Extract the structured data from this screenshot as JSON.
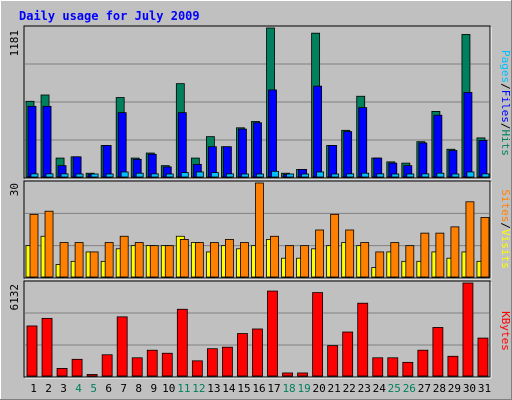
{
  "title": "Daily usage for July 2009",
  "colors": {
    "frame": "#c0c0c0",
    "title": "#0000ff",
    "hits": "#00805c",
    "files": "#0000ff",
    "pages": "#00c0ff",
    "visits": "#ffff00",
    "sites": "#ff8000",
    "kbytes": "#ff0000",
    "weekend_label": "#00805c",
    "weekday_label": "#000000"
  },
  "chart_data": [
    {
      "type": "bar",
      "panel": "requests",
      "ylabel_parts": [
        "Pages",
        "/",
        "Files",
        "/",
        "Hits"
      ],
      "ymax_label": "1181",
      "ylim": [
        0,
        1181
      ],
      "categories": [
        "1",
        "2",
        "3",
        "4",
        "5",
        "6",
        "7",
        "8",
        "9",
        "10",
        "11",
        "12",
        "13",
        "14",
        "15",
        "16",
        "17",
        "18",
        "19",
        "20",
        "21",
        "22",
        "23",
        "24",
        "25",
        "26",
        "27",
        "28",
        "29",
        "30",
        "31"
      ],
      "series": [
        {
          "name": "Hits",
          "values": [
            600,
            650,
            150,
            160,
            30,
            250,
            630,
            150,
            190,
            90,
            740,
            150,
            320,
            240,
            390,
            440,
            1181,
            30,
            60,
            1140,
            250,
            370,
            640,
            150,
            120,
            110,
            280,
            520,
            220,
            1130,
            310
          ]
        },
        {
          "name": "Files",
          "values": [
            560,
            560,
            90,
            160,
            20,
            250,
            510,
            140,
            180,
            80,
            510,
            100,
            240,
            240,
            380,
            430,
            690,
            20,
            60,
            720,
            250,
            360,
            550,
            150,
            110,
            90,
            270,
            490,
            210,
            670,
            290
          ]
        },
        {
          "name": "Pages",
          "values": [
            25,
            25,
            25,
            15,
            10,
            20,
            40,
            30,
            25,
            20,
            35,
            40,
            35,
            25,
            20,
            20,
            45,
            10,
            15,
            40,
            20,
            25,
            30,
            25,
            20,
            20,
            25,
            30,
            20,
            40,
            25
          ]
        }
      ]
    },
    {
      "type": "bar",
      "panel": "visitors",
      "ylabel_parts": [
        "Sites",
        "/",
        "Visits"
      ],
      "ymax_label": "30",
      "ylim": [
        0,
        30
      ],
      "categories": [
        "1",
        "2",
        "3",
        "4",
        "5",
        "6",
        "7",
        "8",
        "9",
        "10",
        "11",
        "12",
        "13",
        "14",
        "15",
        "16",
        "17",
        "18",
        "19",
        "20",
        "21",
        "22",
        "23",
        "24",
        "25",
        "26",
        "27",
        "28",
        "29",
        "30",
        "31"
      ],
      "series": [
        {
          "name": "Visits",
          "values": [
            10,
            13,
            4,
            5,
            8,
            5,
            9,
            10,
            10,
            10,
            13,
            11,
            8,
            10,
            9,
            10,
            12,
            6,
            6,
            9,
            10,
            11,
            10,
            3,
            8,
            5,
            5,
            8,
            6,
            8,
            5
          ]
        },
        {
          "name": "Sites",
          "values": [
            20,
            21,
            11,
            11,
            8,
            11,
            13,
            11,
            10,
            10,
            12,
            11,
            11,
            12,
            11,
            30,
            13,
            10,
            10,
            15,
            20,
            15,
            11,
            8,
            11,
            10,
            14,
            14,
            16,
            24,
            19
          ]
        }
      ]
    },
    {
      "type": "bar",
      "panel": "kbytes",
      "ylabel_parts": [
        "KBytes"
      ],
      "ymax_label": "6132",
      "ylim": [
        0,
        6132
      ],
      "categories": [
        "1",
        "2",
        "3",
        "4",
        "5",
        "6",
        "7",
        "8",
        "9",
        "10",
        "11",
        "12",
        "13",
        "14",
        "15",
        "16",
        "17",
        "18",
        "19",
        "20",
        "21",
        "22",
        "23",
        "24",
        "25",
        "26",
        "27",
        "28",
        "29",
        "30",
        "31"
      ],
      "series": [
        {
          "name": "KBytes",
          "values": [
            3300,
            3800,
            500,
            1100,
            100,
            1400,
            3900,
            1200,
            1700,
            1500,
            4400,
            1000,
            1800,
            1900,
            2800,
            3100,
            5600,
            200,
            200,
            5500,
            2000,
            2900,
            4800,
            1200,
            1200,
            900,
            1700,
            3200,
            1300,
            6132,
            2500
          ]
        }
      ]
    }
  ],
  "x_axis": {
    "labels": [
      "1",
      "2",
      "3",
      "4",
      "5",
      "6",
      "7",
      "8",
      "9",
      "10",
      "11",
      "12",
      "13",
      "14",
      "15",
      "16",
      "17",
      "18",
      "19",
      "20",
      "21",
      "22",
      "23",
      "24",
      "25",
      "26",
      "27",
      "28",
      "29",
      "30",
      "31"
    ],
    "weekend_days": [
      "4",
      "5",
      "11",
      "12",
      "18",
      "19",
      "25",
      "26"
    ]
  }
}
